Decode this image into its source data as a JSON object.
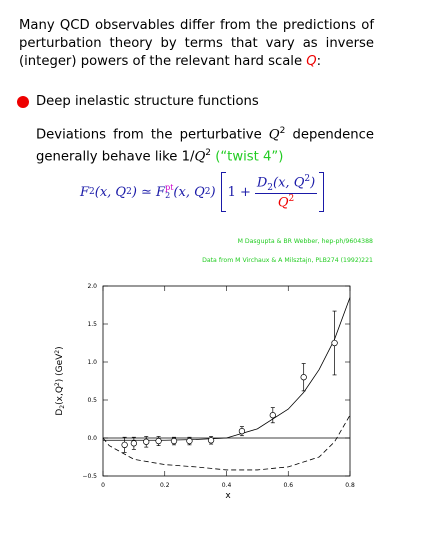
{
  "intro": [
    "Many QCD observables differ from the predictions of perturbation theory by terms that vary as inverse (integer) powers of the relevant hard scale ",
    "Q",
    ":"
  ],
  "bullet": "Deep inelastic structure functions",
  "detail": [
    "Deviations from the perturbative ",
    "Q",
    "2",
    " dependence generally behave like 1/",
    "Q",
    "2",
    " (“twist 4”)"
  ],
  "formula": [
    "F",
    "2",
    "(x, Q",
    "2",
    ") ≃ F",
    "2",
    "pt",
    "(x, Q",
    "2",
    ")",
    "1 +",
    "D",
    "2",
    "(x, Q",
    "2",
    ")",
    "Q",
    "2"
  ],
  "references": [
    "M Dasgupta & BR Webber, hep-ph/9604388",
    "Data from M Virchaux & A Milsztajn, PLB274 (1992)221"
  ],
  "chart_data": {
    "type": "errorbar",
    "x_label": "x",
    "y_label": [
      "D",
      "2",
      "(x,Q",
      "2",
      ") (GeV",
      "2",
      ")"
    ],
    "xlim": [
      0,
      0.8
    ],
    "ylim": [
      -0.5,
      2.0
    ],
    "xticks": [
      0,
      0.2,
      0.4,
      0.6,
      0.8
    ],
    "yticks": [
      {
        "value": -0.5,
        "label": "−0.5"
      },
      {
        "value": 0,
        "label": "0.0"
      },
      {
        "value": 0.5,
        "label": "0.5"
      },
      {
        "value": 1.0,
        "label": "1.0"
      },
      {
        "value": 1.5,
        "label": "1.5"
      },
      {
        "value": 2.0,
        "label": "2.0"
      }
    ],
    "points": {
      "x": [
        0.07,
        0.1,
        0.14,
        0.18,
        0.23,
        0.28,
        0.35,
        0.45,
        0.55,
        0.65,
        0.75
      ],
      "values": [
        -0.09,
        -0.07,
        -0.05,
        -0.04,
        -0.04,
        -0.04,
        -0.03,
        0.09,
        0.3,
        0.8,
        1.25
      ],
      "errors": [
        0.1,
        0.08,
        0.07,
        0.06,
        0.05,
        0.05,
        0.05,
        0.06,
        0.1,
        0.18,
        0.42
      ]
    },
    "curves": [
      {
        "style": "solid",
        "x": [
          0,
          0.1,
          0.2,
          0.3,
          0.4,
          0.5,
          0.6,
          0.65,
          0.7,
          0.75,
          0.8
        ],
        "values": [
          -0.03,
          -0.03,
          -0.03,
          -0.02,
          0.0,
          0.12,
          0.38,
          0.6,
          0.9,
          1.3,
          1.85
        ]
      },
      {
        "style": "dashed",
        "x": [
          0,
          0.02,
          0.1,
          0.2,
          0.3,
          0.4,
          0.5,
          0.6,
          0.7,
          0.75,
          0.8
        ],
        "values": [
          0.0,
          -0.1,
          -0.28,
          -0.35,
          -0.38,
          -0.42,
          -0.42,
          -0.38,
          -0.25,
          -0.05,
          0.3
        ]
      }
    ]
  }
}
